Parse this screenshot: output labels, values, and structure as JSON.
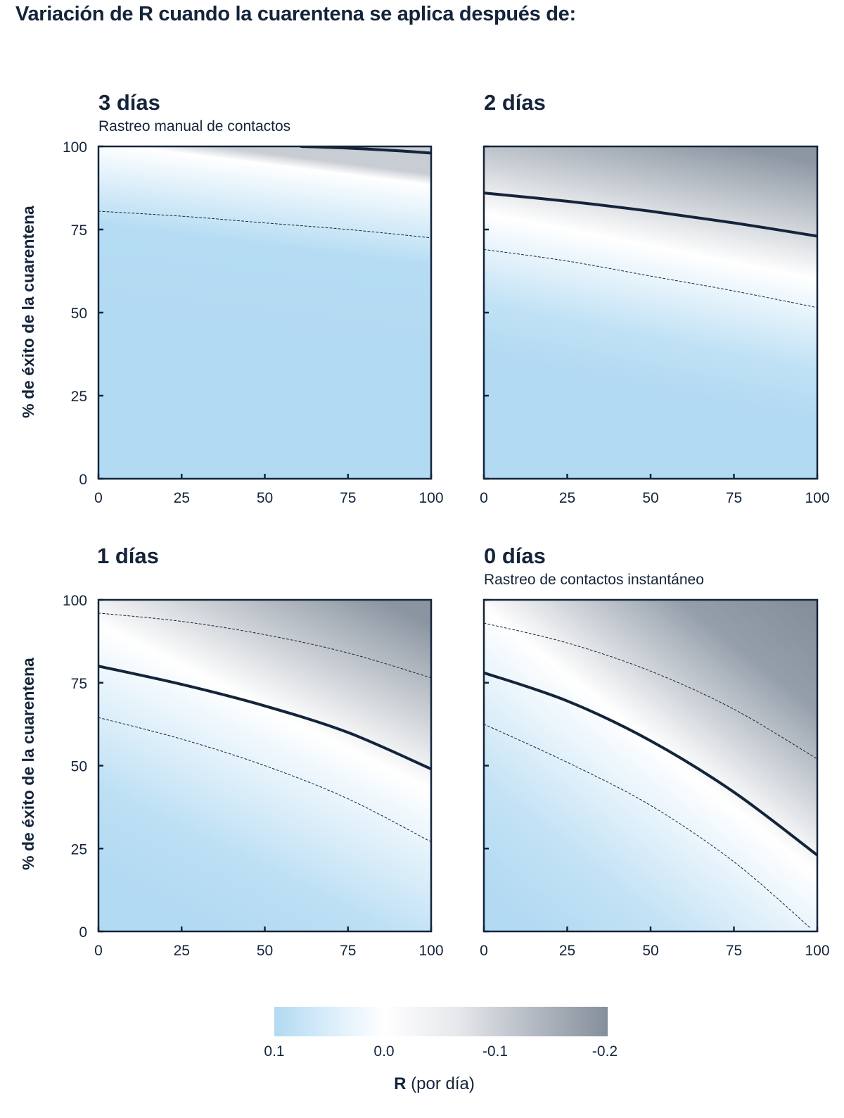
{
  "title": "Variación de R cuando la cuarentena se aplica después de:",
  "y_axis_label": "% de éxito de la cuarentena",
  "colors": {
    "positive": "#b2daf2",
    "zero": "#ffffff",
    "negative": "#848f9b",
    "line": "#14243a"
  },
  "legend": {
    "title_bold": "R",
    "title_rest": " (por día)",
    "ticks": [
      "0.1",
      "0.0",
      "-0.1",
      "-0.2"
    ]
  },
  "chart_data": [
    {
      "type": "heatmap",
      "title": "3 días",
      "subtitle": "Rastreo manual de contactos",
      "xlim": [
        0,
        100
      ],
      "ylim": [
        0,
        100
      ],
      "xticks": [
        "0",
        "25",
        "50",
        "75",
        "100"
      ],
      "yticks": [
        "0",
        "25",
        "50",
        "75",
        "100"
      ],
      "colorbar_range": [
        0.1,
        -0.2
      ],
      "contours": [
        {
          "level": 0.0,
          "style": "solid",
          "x": [
            61,
            75,
            90,
            100
          ],
          "y": [
            100,
            99.5,
            98.7,
            98
          ]
        },
        {
          "level": 0.05,
          "style": "dashed",
          "x": [
            0,
            25,
            50,
            75,
            100
          ],
          "y": [
            80.5,
            79,
            77,
            75,
            72.5
          ]
        }
      ]
    },
    {
      "type": "heatmap",
      "title": "2 días",
      "subtitle": "",
      "xlim": [
        0,
        100
      ],
      "ylim": [
        0,
        100
      ],
      "xticks": [
        "0",
        "25",
        "50",
        "75",
        "100"
      ],
      "yticks": [
        "",
        "",
        "",
        "",
        ""
      ],
      "colorbar_range": [
        0.1,
        -0.2
      ],
      "contours": [
        {
          "level": 0.0,
          "style": "solid",
          "x": [
            0,
            25,
            50,
            75,
            100
          ],
          "y": [
            86,
            83.5,
            80.5,
            77,
            73
          ]
        },
        {
          "level": 0.05,
          "style": "dashed",
          "x": [
            0,
            25,
            50,
            75,
            100
          ],
          "y": [
            69,
            65.5,
            61,
            56.5,
            51.5
          ]
        }
      ]
    },
    {
      "type": "heatmap",
      "title": "1 días",
      "subtitle": "",
      "xlim": [
        0,
        100
      ],
      "ylim": [
        0,
        100
      ],
      "xticks": [
        "0",
        "25",
        "50",
        "75",
        "100"
      ],
      "yticks": [
        "0",
        "25",
        "50",
        "75",
        "100"
      ],
      "colorbar_range": [
        0.1,
        -0.2
      ],
      "contours": [
        {
          "level": -0.05,
          "style": "dashed",
          "x": [
            0,
            25,
            50,
            75,
            100
          ],
          "y": [
            96,
            93.5,
            89.5,
            84,
            76.5
          ]
        },
        {
          "level": 0.0,
          "style": "solid",
          "x": [
            0,
            25,
            50,
            75,
            100
          ],
          "y": [
            80,
            74.5,
            68,
            60,
            49
          ]
        },
        {
          "level": 0.05,
          "style": "dashed",
          "x": [
            0,
            25,
            50,
            75,
            100
          ],
          "y": [
            64.5,
            58,
            50,
            40,
            27
          ]
        }
      ]
    },
    {
      "type": "heatmap",
      "title": "0 días",
      "subtitle": "Rastreo de contactos instantáneo",
      "xlim": [
        0,
        100
      ],
      "ylim": [
        0,
        100
      ],
      "xticks": [
        "0",
        "25",
        "50",
        "75",
        "100"
      ],
      "yticks": [
        "",
        "",
        "",
        "",
        ""
      ],
      "colorbar_range": [
        0.1,
        -0.2
      ],
      "contours": [
        {
          "level": -0.05,
          "style": "dashed",
          "x": [
            0,
            25,
            50,
            75,
            100
          ],
          "y": [
            93,
            87,
            78.5,
            67,
            52
          ]
        },
        {
          "level": 0.0,
          "style": "solid",
          "x": [
            0,
            25,
            50,
            75,
            100
          ],
          "y": [
            78,
            69.5,
            57.5,
            42,
            23
          ]
        },
        {
          "level": 0.05,
          "style": "dashed",
          "x": [
            0,
            25,
            50,
            75,
            98
          ],
          "y": [
            62.5,
            51,
            38,
            21,
            1
          ]
        }
      ]
    }
  ]
}
